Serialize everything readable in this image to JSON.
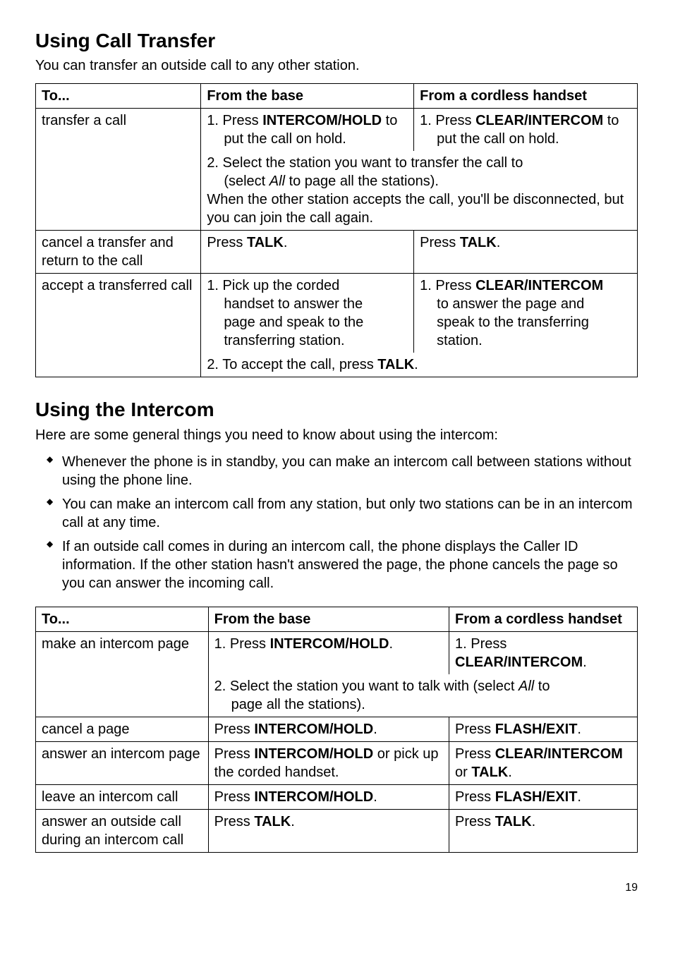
{
  "sections": [
    {
      "heading": "Using Call Transfer",
      "intro": "You can transfer an outside call to any other station.",
      "table": {
        "headers": [
          "To...",
          "From the base",
          "From a cordless handset"
        ],
        "rows": [
          {
            "to": "transfer a call",
            "base_line1_pre": "1. Press ",
            "base_line1_key": "INTERCOM/HOLD",
            "base_line1_post": " to",
            "base_line1_indent": "put the call on hold.",
            "handset_line1_pre": "1. Press ",
            "handset_line1_key": "CLEAR/INTERCOM",
            "handset_line1_post": " to",
            "handset_line1_indent": "put the call on hold.",
            "shared2_pre": "2. Select the station you want to transfer the call to",
            "shared2_indent_pre": "(select ",
            "shared2_indent_em": "All",
            "shared2_indent_post": " to page all the stations).",
            "shared3": "When the other station accepts the call, you'll be disconnected, but you can join the call again."
          },
          {
            "to": "cancel a transfer and return to the call",
            "base_pre": "Press ",
            "base_key": "TALK",
            "base_post": ".",
            "handset_pre": "Press ",
            "handset_key": "TALK",
            "handset_post": "."
          },
          {
            "to": "accept a transferred call",
            "base_1a": "1. Pick up the corded",
            "base_1b": "handset to answer the",
            "base_1c": "page and speak to the",
            "base_1d": "transferring station.",
            "handset_1_pre": "1. Press ",
            "handset_1_key": "CLEAR/INTERCOM",
            "handset_1b": "to answer the page and",
            "handset_1c": "speak to the transferring",
            "handset_1d": "station.",
            "shared2_pre": "2. To accept the call, press ",
            "shared2_key": "TALK",
            "shared2_post": "."
          }
        ]
      }
    },
    {
      "heading": "Using the Intercom",
      "intro": "Here are some general things you need to know about using the intercom:",
      "bullets": [
        "Whenever the phone is in standby, you can make an intercom call between stations without using the phone line.",
        "You can make an intercom call from any station, but only two stations can be in an intercom call at any time.",
        "If an outside call comes in during an intercom call, the phone displays the Caller ID information. If the other station hasn't answered the page, the phone cancels the page so you can answer the incoming call."
      ],
      "table": {
        "headers": [
          "To...",
          "From the base",
          "From a cordless handset"
        ],
        "rows": [
          {
            "to": "make an intercom page",
            "base_1_pre": "1. Press ",
            "base_1_key": "INTERCOM/HOLD",
            "base_1_post": ".",
            "handset_1_pre": "1. Press ",
            "handset_1_key": "CLEAR/INTERCOM",
            "handset_1_post": ".",
            "shared2_pre": "2. Select the station you want to talk with (select ",
            "shared2_em": "All",
            "shared2_post": " to",
            "shared2_indent": "page all the stations)."
          },
          {
            "to": "cancel a page",
            "base_pre": "Press ",
            "base_key": "INTERCOM/HOLD",
            "base_post": ".",
            "handset_pre": "Press ",
            "handset_key": "FLASH/EXIT",
            "handset_post": "."
          },
          {
            "to": "answer an intercom page",
            "base_pre": "Press ",
            "base_key": "INTERCOM/HOLD",
            "base_mid": " or pick up the corded handset.",
            "handset_pre": "Press ",
            "handset_key1": "CLEAR/INTERCOM",
            "handset_mid": " or ",
            "handset_key2": "TALK",
            "handset_post": "."
          },
          {
            "to": "leave an intercom call",
            "base_pre": "Press ",
            "base_key": "INTERCOM/HOLD",
            "base_post": ".",
            "handset_pre": "Press ",
            "handset_key": "FLASH/EXIT",
            "handset_post": "."
          },
          {
            "to": "answer an outside call during an intercom call",
            "base_pre": "Press ",
            "base_key": "TALK",
            "base_post": ".",
            "handset_pre": "Press ",
            "handset_key": "TALK",
            "handset_post": "."
          }
        ]
      }
    }
  ],
  "page_number": "19"
}
